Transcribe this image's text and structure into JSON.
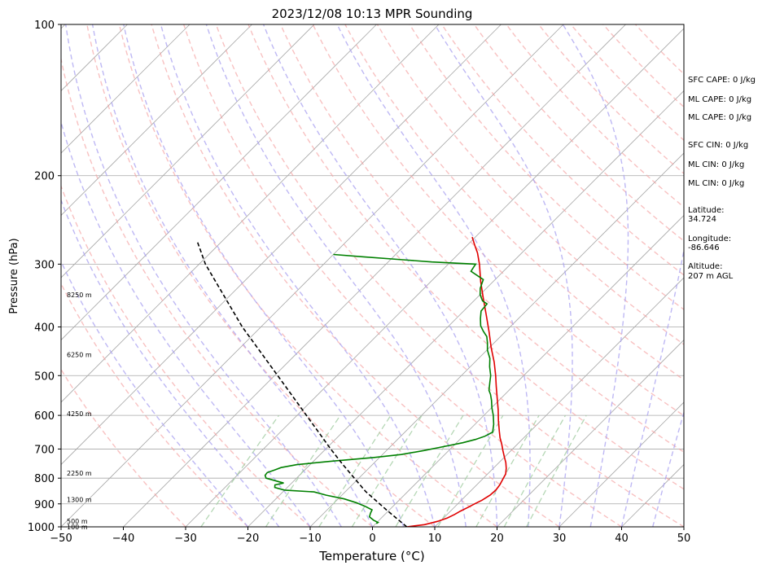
{
  "chart_data": {
    "type": "skew-t sounding",
    "title": "2023/12/08 10:13 MPR Sounding",
    "xlabel": "Temperature (°C)",
    "ylabel": "Pressure (hPa)",
    "xlim": [
      -50,
      50
    ],
    "ylim": [
      1000,
      100
    ],
    "y_scale": "log",
    "grid": true,
    "x_ticks": [
      -50,
      -40,
      -30,
      -20,
      -10,
      0,
      10,
      20,
      30,
      40,
      50
    ],
    "x_tick_labels": [
      "−50",
      "−40",
      "−30",
      "−20",
      "−10",
      "0",
      "10",
      "20",
      "30",
      "40",
      "50"
    ],
    "y_ticks": [
      1000,
      900,
      800,
      700,
      600,
      500,
      400,
      300,
      200,
      100
    ],
    "y_tick_labels": [
      "1000",
      "900",
      "800",
      "700",
      "600",
      "500",
      "400",
      "300",
      "200",
      "100"
    ],
    "height_labels": [
      {
        "p": 1000,
        "text": "100 m"
      },
      {
        "p": 975,
        "text": "500 m"
      },
      {
        "p": 883,
        "text": "1300 m"
      },
      {
        "p": 781,
        "text": "2250 m"
      },
      {
        "p": 595,
        "text": "4250 m"
      },
      {
        "p": 454,
        "text": "6250 m"
      },
      {
        "p": 345,
        "text": "8250 m"
      }
    ],
    "series": [
      {
        "color": "#e00000",
        "style": "solid",
        "points": [
          [
            1000,
            5.5
          ],
          [
            990,
            8.0
          ],
          [
            975,
            9.6
          ],
          [
            960,
            10.6
          ],
          [
            945,
            11.2
          ],
          [
            930,
            11.6
          ],
          [
            915,
            12.2
          ],
          [
            900,
            12.7
          ],
          [
            885,
            13.3
          ],
          [
            865,
            13.8
          ],
          [
            845,
            13.9
          ],
          [
            825,
            13.7
          ],
          [
            805,
            13.3
          ],
          [
            785,
            12.9
          ],
          [
            765,
            12.1
          ],
          [
            745,
            11.1
          ],
          [
            725,
            9.9
          ],
          [
            705,
            8.7
          ],
          [
            685,
            7.5
          ],
          [
            665,
            6.2
          ],
          [
            645,
            5.0
          ],
          [
            615,
            3.2
          ],
          [
            585,
            1.4
          ],
          [
            555,
            -0.6
          ],
          [
            525,
            -2.7
          ],
          [
            500,
            -4.5
          ],
          [
            470,
            -6.9
          ],
          [
            440,
            -9.7
          ],
          [
            410,
            -12.5
          ],
          [
            380,
            -15.6
          ],
          [
            350,
            -19.0
          ],
          [
            325,
            -22.0
          ],
          [
            300,
            -25.0
          ],
          [
            285,
            -27.1
          ],
          [
            275,
            -28.8
          ],
          [
            265,
            -30.5
          ]
        ]
      },
      {
        "color": "#008000",
        "style": "solid",
        "points": [
          [
            985,
            0.1
          ],
          [
            980,
            0.2
          ],
          [
            970,
            -0.9
          ],
          [
            955,
            -2.1
          ],
          [
            940,
            -2.5
          ],
          [
            925,
            -2.8
          ],
          [
            910,
            -4.5
          ],
          [
            895,
            -6.5
          ],
          [
            880,
            -9.0
          ],
          [
            865,
            -12.5
          ],
          [
            852,
            -15.0
          ],
          [
            845,
            -20.0
          ],
          [
            835,
            -22.0
          ],
          [
            825,
            -22.4
          ],
          [
            818,
            -21.3
          ],
          [
            812,
            -22.5
          ],
          [
            800,
            -24.9
          ],
          [
            790,
            -25.5
          ],
          [
            780,
            -25.6
          ],
          [
            770,
            -24.8
          ],
          [
            762,
            -24.2
          ],
          [
            752,
            -22.1
          ],
          [
            740,
            -17.0
          ],
          [
            728,
            -11.0
          ],
          [
            718,
            -7.0
          ],
          [
            705,
            -4.0
          ],
          [
            695,
            -2.0
          ],
          [
            680,
            1.0
          ],
          [
            670,
            2.5
          ],
          [
            660,
            3.5
          ],
          [
            648,
            4.1
          ],
          [
            625,
            3.0
          ],
          [
            600,
            1.5
          ],
          [
            580,
            0.1
          ],
          [
            560,
            -1.2
          ],
          [
            545,
            -2.3
          ],
          [
            535,
            -3.2
          ],
          [
            515,
            -4.4
          ],
          [
            500,
            -5.3
          ],
          [
            480,
            -6.9
          ],
          [
            462,
            -8.2
          ],
          [
            445,
            -9.9
          ],
          [
            430,
            -11.1
          ],
          [
            418,
            -12.2
          ],
          [
            408,
            -13.6
          ],
          [
            398,
            -14.9
          ],
          [
            385,
            -16.1
          ],
          [
            372,
            -17.2
          ],
          [
            360,
            -17.4
          ],
          [
            355,
            -18.6
          ],
          [
            345,
            -20.0
          ],
          [
            335,
            -21.0
          ],
          [
            322,
            -21.9
          ],
          [
            310,
            -25.2
          ],
          [
            303,
            -25.5
          ],
          [
            300,
            -25.6
          ],
          [
            297,
            -33.0
          ],
          [
            294,
            -38.0
          ],
          [
            290,
            -45.0
          ],
          [
            287,
            -50.0
          ]
        ]
      },
      {
        "color": "#000000",
        "style": "dashed",
        "points": [
          [
            1000,
            5.5
          ],
          [
            925,
            -0.5
          ],
          [
            850,
            -6.8
          ],
          [
            750,
            -14.9
          ],
          [
            700,
            -19.2
          ],
          [
            600,
            -28.5
          ],
          [
            500,
            -39.5
          ],
          [
            400,
            -53.0
          ],
          [
            300,
            -69.0
          ],
          [
            270,
            -74.0
          ]
        ]
      }
    ]
  },
  "stats": {
    "sfc_cape": "SFC CAPE: 0 J/kg",
    "ml_cape_1": "ML CAPE: 0 J/kg",
    "ml_cape_2": "ML CAPE: 0 J/kg",
    "sfc_cin": "SFC CIN: 0 J/kg",
    "ml_cin_1": "ML CIN: 0 J/kg",
    "ml_cin_2": "ML CIN: 0 J/kg",
    "latitude_label": "Latitude:",
    "latitude_value": "34.724",
    "longitude_label": "Longitude:",
    "longitude_value": "-86.646",
    "altitude_label": "Altitude:",
    "altitude_value": "207 m AGL"
  },
  "colors": {
    "temperature": "#e00000",
    "dewpoint": "#008000",
    "parcel": "#000000",
    "isotherm": "#a8a8a8",
    "dry_adiabat": "#f4a0a0",
    "moist_adiabat": "#a8a0f0",
    "mixing_ratio": "#a8d0a8"
  }
}
